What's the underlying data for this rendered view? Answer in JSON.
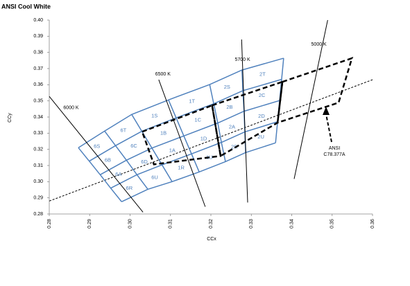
{
  "chart_data": {
    "type": "chromaticity",
    "title": "ANSI Cool White",
    "x_label": "CCx",
    "y_label": "CCy",
    "xlim": [
      0.28,
      0.36
    ],
    "ylim": [
      0.28,
      0.4
    ],
    "xticks": [
      0.28,
      0.29,
      {
        "value": 0.3,
        "label": "0.30"
      },
      0.31,
      0.32,
      0.33,
      0.34,
      0.35,
      0.36
    ],
    "yticks": [
      0.28,
      0.29,
      {
        "value": 0.3,
        "label": "0.30"
      },
      0.31,
      0.32,
      0.33,
      0.34,
      0.35,
      0.36,
      0.37,
      0.38,
      0.39,
      {
        "value": 0.4,
        "label": "0.40"
      }
    ],
    "bins": {
      "color": "#4f81bd",
      "labels": [
        [
          "6S",
          "6T",
          "1S",
          "1T",
          "2S",
          "2T"
        ],
        [
          "6B",
          "6C",
          "1B",
          "1C",
          "2B",
          "2C"
        ],
        [
          "6A",
          "6D",
          "1A",
          "1D",
          "2A",
          "2D"
        ],
        [
          "6R",
          "6U",
          "1R",
          "1U",
          "2R",
          "2U"
        ]
      ],
      "grid_x": [
        [
          0.2872,
          0.2937,
          0.3004,
          0.3095,
          0.3197,
          0.3277,
          0.338
        ],
        [
          0.2899,
          0.2964,
          0.3029,
          0.3114,
          0.3207,
          0.3279,
          0.3375
        ],
        [
          0.2926,
          0.2991,
          0.3054,
          0.3133,
          0.3217,
          0.3282,
          0.337
        ],
        [
          0.2952,
          0.3017,
          0.3079,
          0.3152,
          0.3226,
          0.3284,
          0.3365
        ],
        [
          0.2979,
          0.3044,
          0.3104,
          0.3171,
          0.3236,
          0.3286,
          0.336
        ]
      ],
      "grid_y": [
        [
          0.321,
          0.3313,
          0.3416,
          0.3506,
          0.3601,
          0.3691,
          0.3764
        ],
        [
          0.3127,
          0.3223,
          0.3312,
          0.3395,
          0.3482,
          0.3563,
          0.3633
        ],
        [
          0.3043,
          0.3133,
          0.3208,
          0.3283,
          0.3363,
          0.3436,
          0.3502
        ],
        [
          0.296,
          0.3043,
          0.3104,
          0.3172,
          0.3243,
          0.3308,
          0.3371
        ],
        [
          0.2876,
          0.2953,
          0.3,
          0.306,
          0.3124,
          0.318,
          0.324
        ]
      ]
    },
    "cct_lines": [
      {
        "name": "6000 K",
        "x": [
          0.28,
          0.3032
        ],
        "y": [
          0.3528,
          0.2811
        ]
      },
      {
        "name": "6500 K",
        "x": [
          0.3071,
          0.3186
        ],
        "y": [
          0.3631,
          0.2845
        ]
      },
      {
        "name": "5700 K",
        "x": [
          0.3276,
          0.3291
        ],
        "y": [
          0.388,
          0.2871
        ]
      },
      {
        "name": "5000 K",
        "x": [
          0.3489,
          0.3406
        ],
        "y": [
          0.4,
          0.3017
        ]
      }
    ],
    "planckian": {
      "x": [
        0.28,
        0.36
      ],
      "y": [
        0.288,
        0.3631
      ]
    },
    "ansi_quads": [
      {
        "x": [
          0.303,
          0.3203,
          0.3224,
          0.3059
        ],
        "y": [
          0.3309,
          0.3472,
          0.3159,
          0.3107
        ]
      },
      {
        "x": [
          0.3203,
          0.3377,
          0.3365,
          0.3224
        ],
        "y": [
          0.3472,
          0.3618,
          0.3365,
          0.3159
        ]
      },
      {
        "x": [
          0.3377,
          0.3549,
          0.3516,
          0.3365
        ],
        "y": [
          0.3618,
          0.3764,
          0.3489,
          0.3365
        ]
      }
    ],
    "annotation": [
      "ANSI",
      "C78.377A"
    ]
  }
}
